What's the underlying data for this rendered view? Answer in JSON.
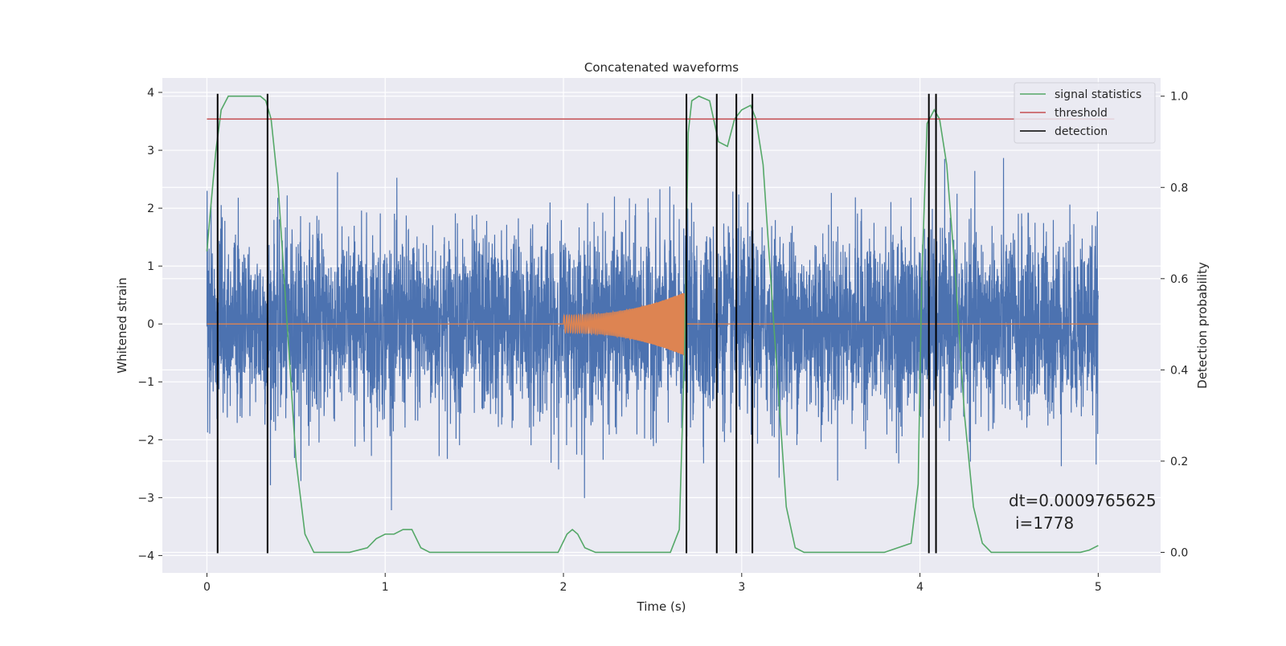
{
  "chart_data": {
    "type": "line",
    "title": "Concatenated waveforms",
    "xlabel": "Time (s)",
    "ylabel": "Whitened strain",
    "y2label": "Detection probability",
    "xlim": [
      -0.25,
      5.35
    ],
    "ylim": [
      -4.3,
      4.25
    ],
    "y2lim": [
      -0.045,
      1.04
    ],
    "xticks": [
      0,
      1,
      2,
      3,
      4,
      5
    ],
    "yticks": [
      -4,
      -3,
      -2,
      -1,
      0,
      1,
      2,
      3,
      4
    ],
    "y2ticks": [
      0.0,
      0.2,
      0.4,
      0.6,
      0.8,
      1.0
    ],
    "x_tick_labels": [
      "0",
      "1",
      "2",
      "3",
      "4",
      "5"
    ],
    "y_tick_labels": [
      "−4",
      "−3",
      "−2",
      "−1",
      "0",
      "1",
      "2",
      "3",
      "4"
    ],
    "y2_tick_labels": [
      "0.0",
      "0.2",
      "0.4",
      "0.6",
      "0.8",
      "1.0"
    ],
    "grid": true,
    "legend_position": "top-right",
    "colors": {
      "strain": "#4c72b0",
      "template": "#dd8452",
      "signal": "#55a868",
      "threshold": "#c44e52",
      "detection": "#000000",
      "background": "#eaeaf2",
      "grid": "#ffffff"
    },
    "strain": {
      "x_range": [
        0,
        5
      ],
      "noise_sigma": 0.8,
      "max_abs": 4.0
    },
    "template": {
      "name": "",
      "x_range": [
        2.0,
        2.68
      ],
      "amplitude_start": 0.15,
      "amplitude_end": 0.55
    },
    "signal_statistics": {
      "name": "signal statistics",
      "x": [
        0,
        0.02,
        0.05,
        0.08,
        0.12,
        0.2,
        0.3,
        0.33,
        0.36,
        0.4,
        0.45,
        0.5,
        0.55,
        0.6,
        0.8,
        0.9,
        0.95,
        1.0,
        1.05,
        1.1,
        1.15,
        1.2,
        1.25,
        1.9,
        1.97,
        2.02,
        2.05,
        2.08,
        2.12,
        2.18,
        2.25,
        2.6,
        2.65,
        2.68,
        2.7,
        2.72,
        2.76,
        2.82,
        2.87,
        2.92,
        2.96,
        3.0,
        3.05,
        3.08,
        3.12,
        3.18,
        3.25,
        3.3,
        3.35,
        3.4,
        3.8,
        3.95,
        3.99,
        4.01,
        4.04,
        4.08,
        4.11,
        4.15,
        4.2,
        4.25,
        4.3,
        4.35,
        4.4,
        4.5,
        4.6,
        4.7,
        4.8,
        4.9,
        4.95,
        5.0
      ],
      "values": [
        0.66,
        0.75,
        0.88,
        0.97,
        1.0,
        1.0,
        1.0,
        0.99,
        0.95,
        0.8,
        0.5,
        0.2,
        0.04,
        0.0,
        0.0,
        0.01,
        0.03,
        0.04,
        0.04,
        0.05,
        0.05,
        0.01,
        0.0,
        0.0,
        0.0,
        0.04,
        0.05,
        0.04,
        0.01,
        0.0,
        0.0,
        0.0,
        0.05,
        0.45,
        0.92,
        0.99,
        1.0,
        0.99,
        0.9,
        0.89,
        0.95,
        0.97,
        0.98,
        0.95,
        0.85,
        0.5,
        0.1,
        0.01,
        0.0,
        0.0,
        0.0,
        0.02,
        0.15,
        0.6,
        0.94,
        0.97,
        0.95,
        0.85,
        0.6,
        0.3,
        0.1,
        0.02,
        0.0,
        0.0,
        0.0,
        0.0,
        0.0,
        0.0,
        0.005,
        0.015
      ]
    },
    "threshold": {
      "name": "threshold",
      "value": 0.95,
      "x_range": [
        0,
        5
      ]
    },
    "detection": {
      "name": "detection",
      "times": [
        0.06,
        0.34,
        2.69,
        2.86,
        2.97,
        3.06,
        4.05,
        4.09
      ]
    },
    "annotation": {
      "line1": "dt=0.0009765625",
      "line2": "i=1778"
    }
  }
}
